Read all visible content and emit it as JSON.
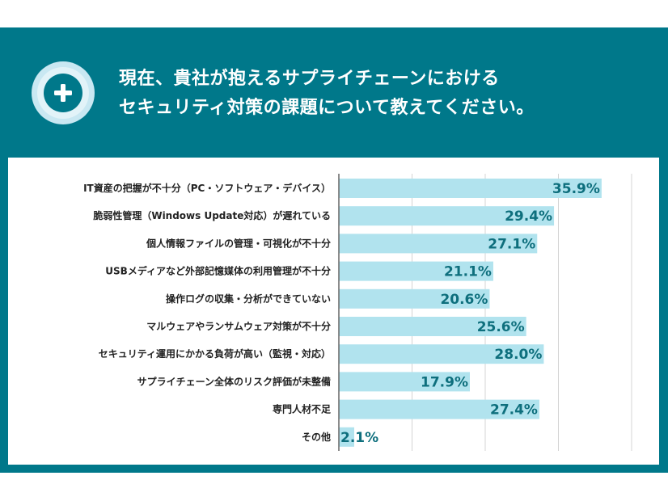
{
  "header": {
    "title_line1": "現在、貴社が抱えるサプライチェーンにおける",
    "title_line2": "セキュリティ対策の課題について教えてください。",
    "icon": "plus-circle-icon"
  },
  "colors": {
    "panel": "#00788a",
    "bar": "#b1e3ee",
    "value_text": "#0e6f7d",
    "icon_ring": "#d6eef5"
  },
  "chart_data": {
    "type": "bar",
    "orientation": "horizontal",
    "categories": [
      "IT資産の把握が不十分（PC・ソフトウェア・デバイス）",
      "脆弱性管理（Windows Update対応）が遅れている",
      "個人情報ファイルの管理・可視化が不十分",
      "USBメディアなど外部記憶媒体の利用管理が不十分",
      "操作ログの収集・分析ができていない",
      "マルウェアやランサムウェア対策が不十分",
      "セキュリティ運用にかかる負荷が高い（監視・対応）",
      "サプライチェーン全体のリスク評価が未整備",
      "専門人材不足",
      "その他"
    ],
    "values": [
      35.9,
      29.4,
      27.1,
      21.1,
      20.6,
      25.6,
      28.0,
      17.9,
      27.4,
      2.1
    ],
    "labels": [
      "35.9%",
      "29.4%",
      "27.1%",
      "21.1%",
      "20.6%",
      "25.6%",
      "28.0%",
      "17.9%",
      "27.4%",
      "2.1%"
    ],
    "xlim": [
      0,
      40
    ],
    "grid": true,
    "gridlines": [
      10,
      20,
      30,
      40
    ]
  }
}
